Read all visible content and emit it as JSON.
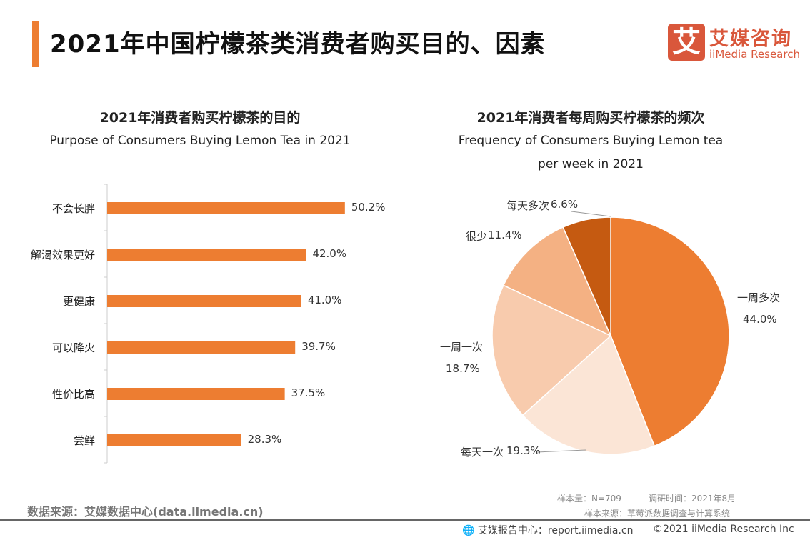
{
  "header": {
    "title": "2021年中国柠檬茶类消费者购买目的、因素",
    "accent": "#ED7D31"
  },
  "logo": {
    "mark": "艾",
    "cn": "艾媒咨询",
    "en": "iiMedia Research",
    "color": "#D9573B"
  },
  "chart_data": [
    {
      "type": "bar",
      "orientation": "horizontal",
      "title": "2021年消费者购买柠檬茶的目的",
      "subtitle": "Purpose of Consumers Buying Lemon Tea in 2021",
      "categories": [
        "不会长胖",
        "解渴效果更好",
        "更健康",
        "可以降火",
        "性价比高",
        "尝鲜"
      ],
      "values": [
        50.2,
        42.0,
        41.0,
        39.7,
        37.5,
        28.3
      ],
      "labels": [
        "50.2%",
        "42.0%",
        "41.0%",
        "39.7%",
        "37.5%",
        "28.3%"
      ],
      "color": "#ED7D31",
      "grid": false
    },
    {
      "type": "pie",
      "title": "2021年消费者每周购买柠檬茶的频次",
      "subtitle_lines": [
        "Frequency of Consumers Buying Lemon tea",
        "per week in 2021"
      ],
      "slices": [
        {
          "name": "一周多次",
          "value": 44.0,
          "label": "44.0%",
          "color": "#ED7D31"
        },
        {
          "name": "每天一次",
          "value": 19.3,
          "label": "19.3%",
          "color": "#FBE5D6"
        },
        {
          "name": "一周一次",
          "value": 18.7,
          "label": "18.7%",
          "color": "#F8CBAD"
        },
        {
          "name": "很少",
          "value": 11.4,
          "label": "11.4%",
          "color": "#F4B183"
        },
        {
          "name": "每天多次",
          "value": 6.6,
          "label": "6.6%",
          "color": "#C55A11"
        }
      ],
      "start": "top",
      "direction": "clockwise"
    }
  ],
  "footer": {
    "source_left": "数据来源：艾媒数据中心(data.iimedia.cn)",
    "sample": "样本量：N=709",
    "survey_time": "调研时间：2021年8月",
    "sample_source": "样本来源：草莓派数据调查与计算系统",
    "report_center": "艾媒报告中心：report.iimedia.cn",
    "copyright": "©2021  iiMedia Research  Inc"
  }
}
